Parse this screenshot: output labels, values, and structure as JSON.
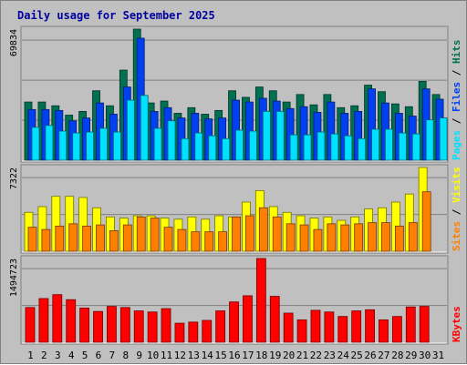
{
  "title": "Daily usage for September 2025",
  "colors": {
    "hits": "#007050",
    "files": "#0040f0",
    "pages": "#00e0ff",
    "visits": "#ffff00",
    "sites": "#ff8000",
    "kbytes": "#ff0000",
    "weekend_label": "#008040",
    "grid": "#808080",
    "panel_bg": "#c0c0c0"
  },
  "chart_data": [
    {
      "type": "bar",
      "panel": "hits-files-pages",
      "y_max_label": "69834",
      "ylim": [
        0,
        69834
      ],
      "side_labels": [
        "Pages",
        "Files",
        "Hits"
      ],
      "categories": [
        "1",
        "2",
        "3",
        "4",
        "5",
        "6",
        "7",
        "8",
        "9",
        "10",
        "11",
        "12",
        "13",
        "14",
        "15",
        "16",
        "17",
        "18",
        "19",
        "20",
        "21",
        "22",
        "23",
        "24",
        "25",
        "26",
        "27",
        "28",
        "29",
        "30",
        "31"
      ],
      "weekend_days": [
        "6",
        "7",
        "13",
        "14",
        "20",
        "21",
        "27",
        "28"
      ],
      "series": [
        {
          "name": "Hits",
          "values": [
            31000,
            31000,
            29000,
            24000,
            26000,
            37000,
            29000,
            48000,
            69834,
            30500,
            31500,
            25000,
            28000,
            24500,
            26500,
            37000,
            33500,
            39000,
            37000,
            31000,
            35000,
            29500,
            35000,
            28000,
            29000,
            40000,
            36500,
            30000,
            28500,
            42000,
            35000
          ]
        },
        {
          "name": "Files",
          "values": [
            27000,
            27000,
            26500,
            21000,
            22500,
            30500,
            24500,
            39000,
            65000,
            26000,
            28000,
            22500,
            25000,
            22000,
            22500,
            32000,
            31000,
            33000,
            31500,
            27500,
            28500,
            25500,
            31000,
            25000,
            26000,
            38000,
            30500,
            25000,
            23500,
            38000,
            32500
          ]
        },
        {
          "name": "Pages",
          "values": [
            17500,
            18500,
            15500,
            14500,
            15000,
            17000,
            15000,
            32000,
            34500,
            17000,
            21000,
            11500,
            14500,
            13000,
            11500,
            16000,
            15500,
            26000,
            26000,
            13500,
            13500,
            15000,
            14000,
            13000,
            11500,
            16500,
            16500,
            14500,
            14000,
            21500,
            22500
          ]
        }
      ]
    },
    {
      "type": "bar",
      "panel": "visits-sites",
      "y_max_label": "7322",
      "ylim": [
        0,
        7322
      ],
      "side_labels": [
        "Sites",
        "Visits"
      ],
      "categories": [
        "1",
        "2",
        "3",
        "4",
        "5",
        "6",
        "7",
        "8",
        "9",
        "10",
        "11",
        "12",
        "13",
        "14",
        "15",
        "16",
        "17",
        "18",
        "19",
        "20",
        "21",
        "22",
        "23",
        "24",
        "25",
        "26",
        "27",
        "28",
        "29",
        "30",
        "31"
      ],
      "series": [
        {
          "name": "Visits",
          "values": [
            3400,
            3900,
            4800,
            4800,
            4700,
            3800,
            3000,
            2900,
            3100,
            3100,
            2900,
            2800,
            3000,
            2800,
            3100,
            3000,
            4300,
            5300,
            3900,
            3400,
            3100,
            2900,
            3000,
            2700,
            3000,
            3700,
            3800,
            4300,
            5000,
            7322,
            0
          ]
        },
        {
          "name": "Sites",
          "values": [
            2100,
            1900,
            2200,
            2400,
            2200,
            2300,
            1800,
            2300,
            3000,
            2900,
            2100,
            1900,
            1700,
            1700,
            1700,
            3000,
            3100,
            3800,
            3000,
            2400,
            2300,
            1900,
            2400,
            2300,
            2400,
            2500,
            2500,
            2200,
            2500,
            5200,
            0
          ]
        }
      ]
    },
    {
      "type": "bar",
      "panel": "kbytes",
      "y_max_label": "1494723",
      "ylim": [
        0,
        1494723
      ],
      "side_labels": [
        "KBytes"
      ],
      "categories": [
        "1",
        "2",
        "3",
        "4",
        "5",
        "6",
        "7",
        "8",
        "9",
        "10",
        "11",
        "12",
        "13",
        "14",
        "15",
        "16",
        "17",
        "18",
        "19",
        "20",
        "21",
        "22",
        "23",
        "24",
        "25",
        "26",
        "27",
        "28",
        "29",
        "30",
        "31"
      ],
      "series": [
        {
          "name": "KBytes",
          "values": [
            620000,
            780000,
            850000,
            760000,
            610000,
            550000,
            640000,
            620000,
            560000,
            540000,
            600000,
            340000,
            360000,
            390000,
            560000,
            720000,
            830000,
            1494723,
            820000,
            520000,
            400000,
            570000,
            540000,
            460000,
            560000,
            580000,
            400000,
            460000,
            630000,
            640000,
            0
          ]
        }
      ]
    }
  ]
}
